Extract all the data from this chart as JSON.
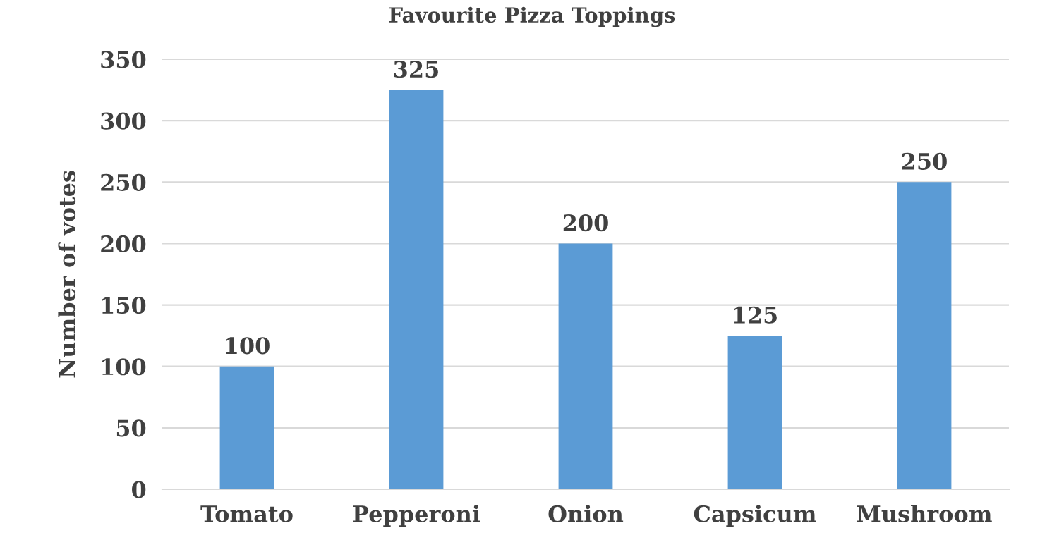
{
  "chart_data": {
    "type": "bar",
    "title": "Favourite Pizza Toppings",
    "ylabel": "Number of votes",
    "categories": [
      "Tomato",
      "Pepperoni",
      "Onion",
      "Capsicum",
      "Mushroom"
    ],
    "values": [
      100,
      325,
      200,
      125,
      250
    ],
    "color": "#5b9bd5",
    "ylim": [
      0,
      350
    ],
    "yticks": [
      0,
      50,
      100,
      150,
      200,
      250,
      300,
      350
    ],
    "grid": "y",
    "data_labels": true
  }
}
